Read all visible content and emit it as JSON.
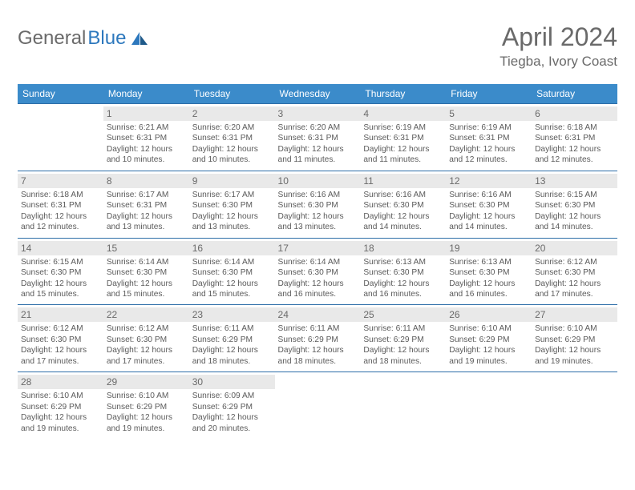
{
  "brand": {
    "part1": "General",
    "part2": "Blue"
  },
  "title": "April 2024",
  "location": "Tiegba, Ivory Coast",
  "colors": {
    "header_bg": "#3b8bca",
    "header_text": "#ffffff",
    "border": "#2d6ea8",
    "daybar_bg": "#e9e9e9",
    "text": "#5a5a5a",
    "brand_blue": "#2d78bd"
  },
  "weekdays": [
    "Sunday",
    "Monday",
    "Tuesday",
    "Wednesday",
    "Thursday",
    "Friday",
    "Saturday"
  ],
  "weeks": [
    [
      null,
      {
        "n": "1",
        "sr": "6:21 AM",
        "ss": "6:31 PM",
        "dl": "12 hours and 10 minutes."
      },
      {
        "n": "2",
        "sr": "6:20 AM",
        "ss": "6:31 PM",
        "dl": "12 hours and 10 minutes."
      },
      {
        "n": "3",
        "sr": "6:20 AM",
        "ss": "6:31 PM",
        "dl": "12 hours and 11 minutes."
      },
      {
        "n": "4",
        "sr": "6:19 AM",
        "ss": "6:31 PM",
        "dl": "12 hours and 11 minutes."
      },
      {
        "n": "5",
        "sr": "6:19 AM",
        "ss": "6:31 PM",
        "dl": "12 hours and 12 minutes."
      },
      {
        "n": "6",
        "sr": "6:18 AM",
        "ss": "6:31 PM",
        "dl": "12 hours and 12 minutes."
      }
    ],
    [
      {
        "n": "7",
        "sr": "6:18 AM",
        "ss": "6:31 PM",
        "dl": "12 hours and 12 minutes."
      },
      {
        "n": "8",
        "sr": "6:17 AM",
        "ss": "6:31 PM",
        "dl": "12 hours and 13 minutes."
      },
      {
        "n": "9",
        "sr": "6:17 AM",
        "ss": "6:30 PM",
        "dl": "12 hours and 13 minutes."
      },
      {
        "n": "10",
        "sr": "6:16 AM",
        "ss": "6:30 PM",
        "dl": "12 hours and 13 minutes."
      },
      {
        "n": "11",
        "sr": "6:16 AM",
        "ss": "6:30 PM",
        "dl": "12 hours and 14 minutes."
      },
      {
        "n": "12",
        "sr": "6:16 AM",
        "ss": "6:30 PM",
        "dl": "12 hours and 14 minutes."
      },
      {
        "n": "13",
        "sr": "6:15 AM",
        "ss": "6:30 PM",
        "dl": "12 hours and 14 minutes."
      }
    ],
    [
      {
        "n": "14",
        "sr": "6:15 AM",
        "ss": "6:30 PM",
        "dl": "12 hours and 15 minutes."
      },
      {
        "n": "15",
        "sr": "6:14 AM",
        "ss": "6:30 PM",
        "dl": "12 hours and 15 minutes."
      },
      {
        "n": "16",
        "sr": "6:14 AM",
        "ss": "6:30 PM",
        "dl": "12 hours and 15 minutes."
      },
      {
        "n": "17",
        "sr": "6:14 AM",
        "ss": "6:30 PM",
        "dl": "12 hours and 16 minutes."
      },
      {
        "n": "18",
        "sr": "6:13 AM",
        "ss": "6:30 PM",
        "dl": "12 hours and 16 minutes."
      },
      {
        "n": "19",
        "sr": "6:13 AM",
        "ss": "6:30 PM",
        "dl": "12 hours and 16 minutes."
      },
      {
        "n": "20",
        "sr": "6:12 AM",
        "ss": "6:30 PM",
        "dl": "12 hours and 17 minutes."
      }
    ],
    [
      {
        "n": "21",
        "sr": "6:12 AM",
        "ss": "6:30 PM",
        "dl": "12 hours and 17 minutes."
      },
      {
        "n": "22",
        "sr": "6:12 AM",
        "ss": "6:30 PM",
        "dl": "12 hours and 17 minutes."
      },
      {
        "n": "23",
        "sr": "6:11 AM",
        "ss": "6:29 PM",
        "dl": "12 hours and 18 minutes."
      },
      {
        "n": "24",
        "sr": "6:11 AM",
        "ss": "6:29 PM",
        "dl": "12 hours and 18 minutes."
      },
      {
        "n": "25",
        "sr": "6:11 AM",
        "ss": "6:29 PM",
        "dl": "12 hours and 18 minutes."
      },
      {
        "n": "26",
        "sr": "6:10 AM",
        "ss": "6:29 PM",
        "dl": "12 hours and 19 minutes."
      },
      {
        "n": "27",
        "sr": "6:10 AM",
        "ss": "6:29 PM",
        "dl": "12 hours and 19 minutes."
      }
    ],
    [
      {
        "n": "28",
        "sr": "6:10 AM",
        "ss": "6:29 PM",
        "dl": "12 hours and 19 minutes."
      },
      {
        "n": "29",
        "sr": "6:10 AM",
        "ss": "6:29 PM",
        "dl": "12 hours and 19 minutes."
      },
      {
        "n": "30",
        "sr": "6:09 AM",
        "ss": "6:29 PM",
        "dl": "12 hours and 20 minutes."
      },
      null,
      null,
      null,
      null
    ]
  ],
  "labels": {
    "sunrise": "Sunrise:",
    "sunset": "Sunset:",
    "daylight": "Daylight:"
  }
}
